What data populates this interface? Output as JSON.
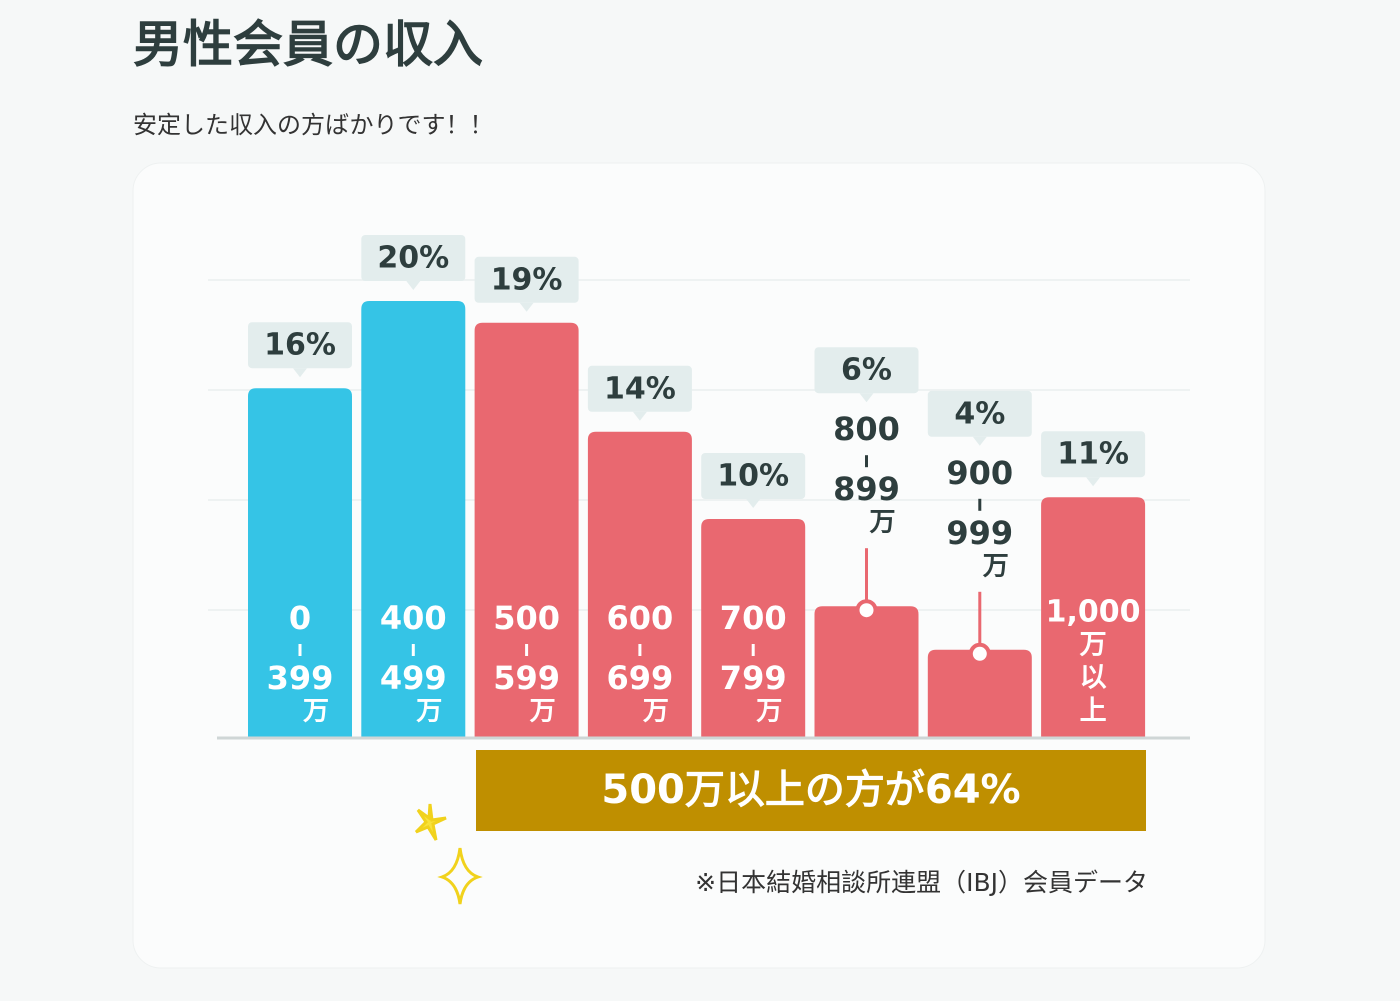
{
  "header": {
    "title": "男性会員の収入",
    "subtitle": "安定した収入の方ばかりです！！"
  },
  "chart_data": {
    "type": "bar",
    "categories": [
      [
        "0",
        "399",
        "万"
      ],
      [
        "400",
        "499",
        "万"
      ],
      [
        "500",
        "599",
        "万"
      ],
      [
        "600",
        "699",
        "万"
      ],
      [
        "700",
        "799",
        "万"
      ],
      [
        "800",
        "899",
        "万"
      ],
      [
        "900",
        "999",
        "万"
      ],
      [
        "1,000",
        "万",
        "以",
        "上"
      ]
    ],
    "values": [
      16,
      20,
      19,
      14,
      10,
      6,
      4,
      11
    ],
    "value_labels": [
      "16%",
      "20%",
      "19%",
      "14%",
      "10%",
      "6%",
      "4%",
      "11%"
    ],
    "colors": [
      "#35c4e6",
      "#35c4e6",
      "#e96870",
      "#e96870",
      "#e96870",
      "#e96870",
      "#e96870",
      "#e96870"
    ],
    "ylim": [
      0,
      20
    ],
    "annotation": "500万以上の方が64%",
    "note": "※日本結婚相談所連盟（IBJ）会員データ"
  }
}
